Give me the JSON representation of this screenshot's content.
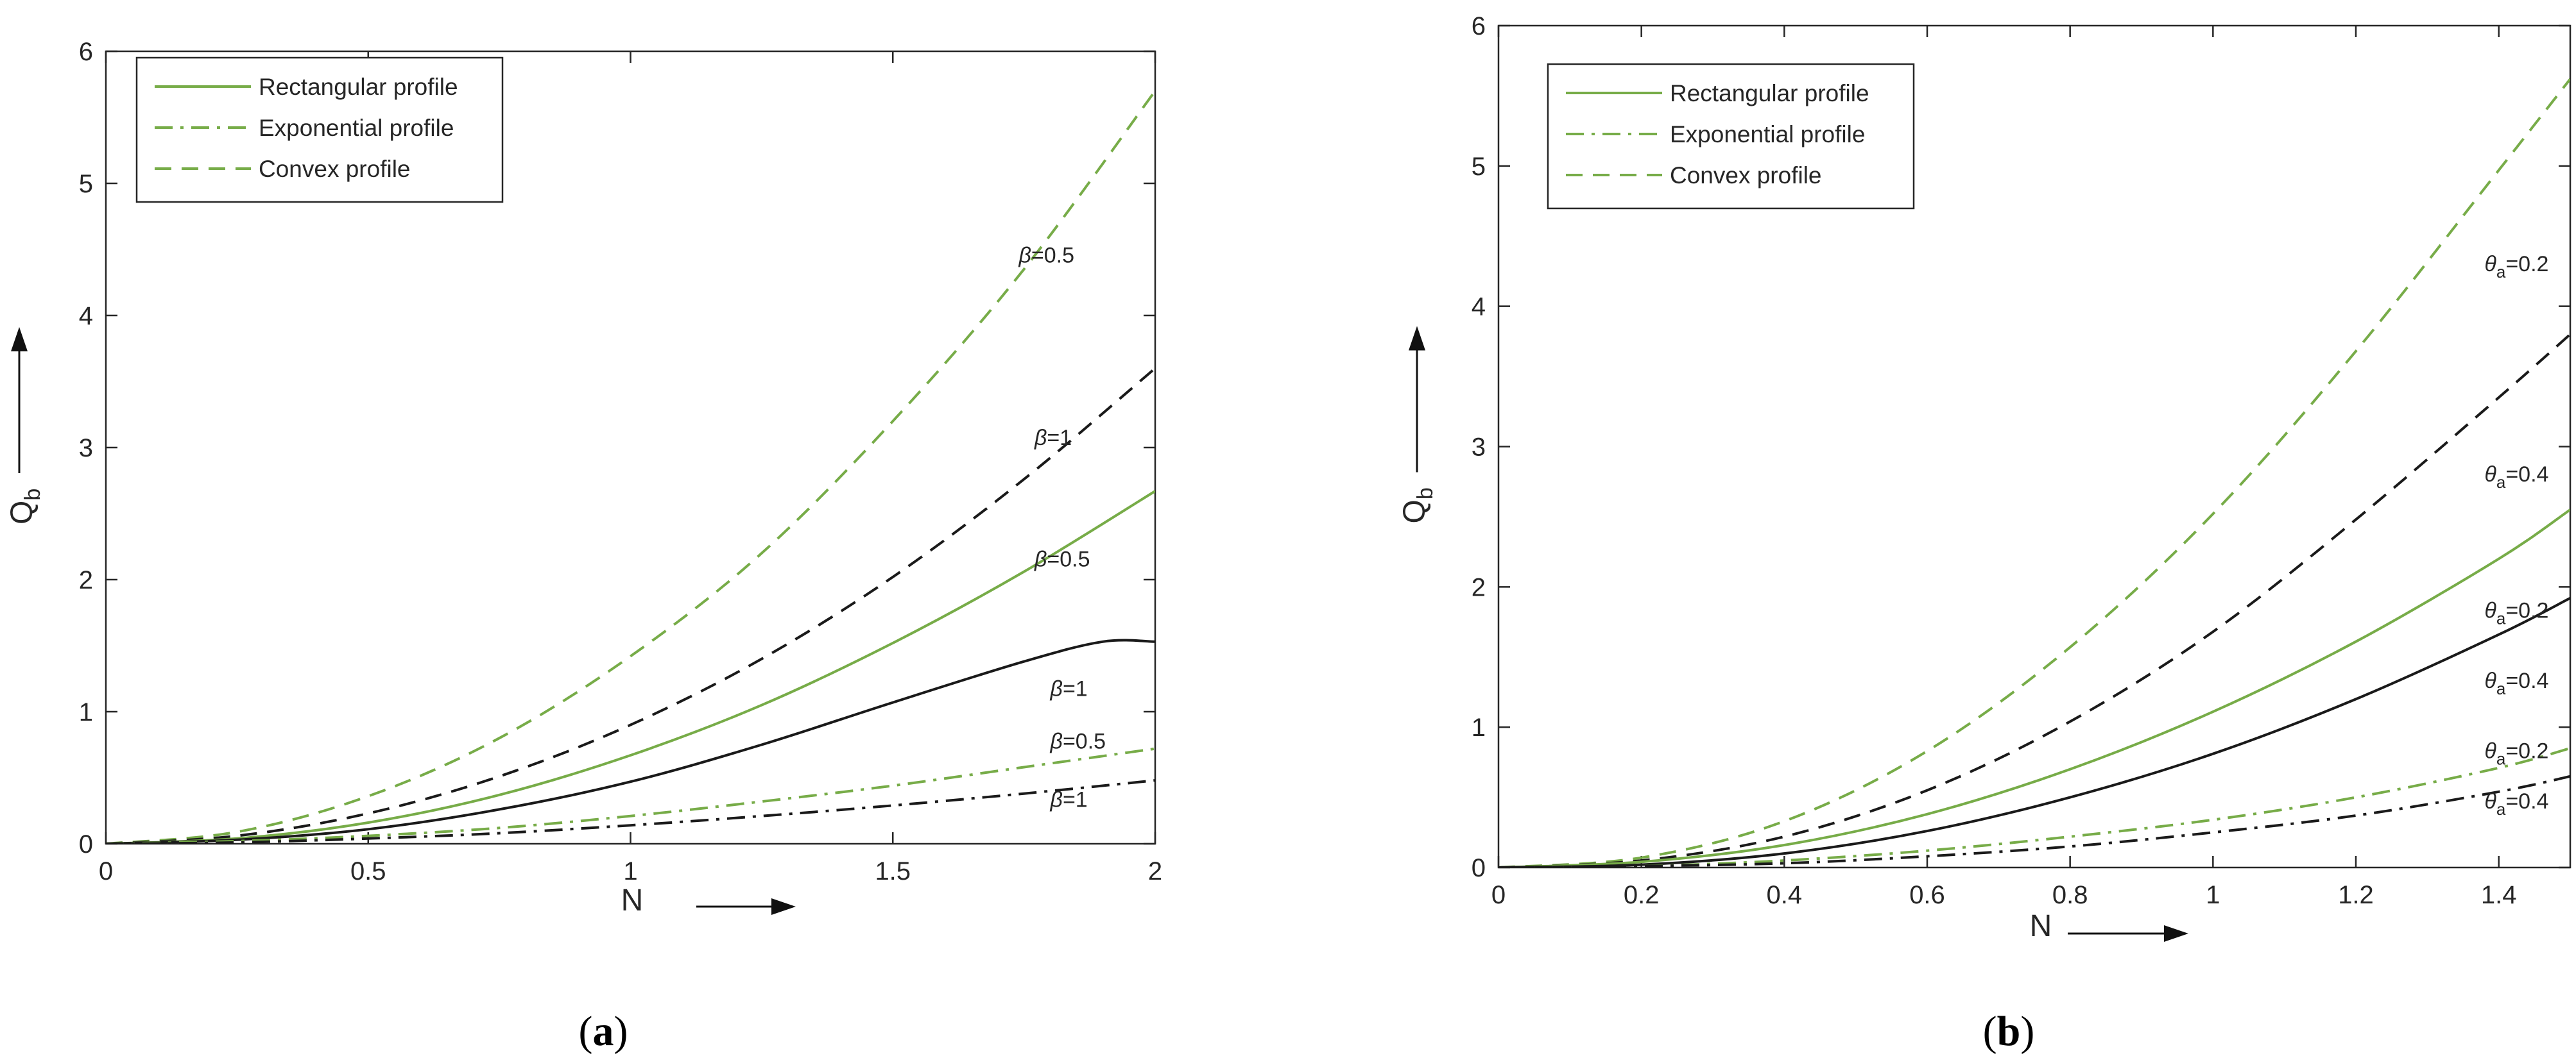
{
  "chart_data": [
    {
      "panel_label": "a",
      "type": "line",
      "xlabel": "N",
      "ylabel": "Q",
      "ylabel_sub": "b",
      "xlim": [
        0,
        2
      ],
      "ylim": [
        0,
        6
      ],
      "xticks": [
        "0",
        "0.5",
        "1",
        "1.5",
        "2"
      ],
      "yticks": [
        "0",
        "1",
        "2",
        "3",
        "4",
        "5",
        "6"
      ],
      "legend": {
        "position": "top-left",
        "entries": [
          {
            "label": "Rectangular profile",
            "style": "solid"
          },
          {
            "label": "Exponential profile",
            "style": "dashdot"
          },
          {
            "label": "Convex profile",
            "style": "dashed"
          }
        ]
      },
      "series": [
        {
          "name": "Convex profile, β=0.5",
          "profile": "convex",
          "color": "#77ac48",
          "style": "dashed",
          "x": [
            0,
            0.25,
            0.5,
            0.75,
            1,
            1.25,
            1.5,
            1.75,
            2
          ],
          "y": [
            0,
            0.09,
            0.36,
            0.8,
            1.42,
            2.2,
            3.2,
            4.35,
            5.7
          ]
        },
        {
          "name": "Convex profile, β=1",
          "profile": "convex",
          "color": "#1a1a1a",
          "style": "dashed",
          "x": [
            0,
            0.25,
            0.5,
            0.75,
            1,
            1.25,
            1.5,
            1.75,
            2
          ],
          "y": [
            0,
            0.06,
            0.23,
            0.51,
            0.9,
            1.4,
            2.02,
            2.76,
            3.6
          ]
        },
        {
          "name": "Rectangular profile, β=0.5",
          "profile": "rectangular",
          "color": "#77ac48",
          "style": "solid",
          "x": [
            0,
            0.25,
            0.5,
            0.75,
            1,
            1.25,
            1.5,
            1.75,
            2
          ],
          "y": [
            0,
            0.04,
            0.16,
            0.37,
            0.67,
            1.05,
            1.52,
            2.06,
            2.67
          ]
        },
        {
          "name": "Rectangular profile, β=1",
          "profile": "rectangular",
          "color": "#1a1a1a",
          "style": "solid",
          "x": [
            0,
            0.25,
            0.5,
            0.75,
            1,
            1.25,
            1.5,
            1.75,
            1.9,
            2
          ],
          "y": [
            0,
            0.03,
            0.11,
            0.26,
            0.47,
            0.75,
            1.07,
            1.38,
            1.53,
            1.53
          ]
        },
        {
          "name": "Exponential profile, β=0.5",
          "profile": "exponential",
          "color": "#77ac48",
          "style": "dashdot",
          "x": [
            0,
            0.25,
            0.5,
            0.75,
            1,
            1.25,
            1.5,
            1.75,
            2
          ],
          "y": [
            0,
            0.02,
            0.06,
            0.12,
            0.21,
            0.32,
            0.44,
            0.58,
            0.72
          ]
        },
        {
          "name": "Exponential profile, β=1",
          "profile": "exponential",
          "color": "#1a1a1a",
          "style": "dashdot",
          "x": [
            0,
            0.25,
            0.5,
            0.75,
            1,
            1.25,
            1.5,
            1.75,
            2
          ],
          "y": [
            0,
            0.01,
            0.04,
            0.08,
            0.14,
            0.21,
            0.29,
            0.38,
            0.48
          ]
        }
      ],
      "annotations": [
        {
          "symbol": "β",
          "text": "=0.5",
          "x": 1.74,
          "y": 4.4
        },
        {
          "symbol": "β",
          "text": "=1",
          "x": 1.77,
          "y": 3.02
        },
        {
          "symbol": "β",
          "text": "=0.5",
          "x": 1.77,
          "y": 2.1
        },
        {
          "symbol": "β",
          "text": "=1",
          "x": 1.8,
          "y": 1.12
        },
        {
          "symbol": "β",
          "text": "=0.5",
          "x": 1.8,
          "y": 0.72
        },
        {
          "symbol": "β",
          "text": "=1",
          "x": 1.8,
          "y": 0.28
        }
      ]
    },
    {
      "panel_label": "b",
      "type": "line",
      "xlabel": "N",
      "ylabel": "Q",
      "ylabel_sub": "b",
      "xlim": [
        0,
        1.5
      ],
      "ylim": [
        0,
        6
      ],
      "xticks": [
        "0",
        "0.2",
        "0.4",
        "0.6",
        "0.8",
        "1",
        "1.2",
        "1.4"
      ],
      "yticks": [
        "0",
        "1",
        "2",
        "3",
        "4",
        "5",
        "6"
      ],
      "legend": {
        "position": "top-left",
        "entries": [
          {
            "label": "Rectangular profile",
            "style": "solid"
          },
          {
            "label": "Exponential profile",
            "style": "dashdot"
          },
          {
            "label": "Convex profile",
            "style": "dashed"
          }
        ]
      },
      "series": [
        {
          "name": "Convex profile, θa=0.2",
          "profile": "convex",
          "color": "#77ac48",
          "style": "dashed",
          "x": [
            0,
            0.2,
            0.4,
            0.6,
            0.8,
            1,
            1.2,
            1.4,
            1.5
          ],
          "y": [
            0,
            0.07,
            0.33,
            0.83,
            1.57,
            2.52,
            3.68,
            4.97,
            5.62
          ]
        },
        {
          "name": "Convex profile, θa=0.4",
          "profile": "convex",
          "color": "#1a1a1a",
          "style": "dashed",
          "x": [
            0,
            0.2,
            0.4,
            0.6,
            0.8,
            1,
            1.2,
            1.4,
            1.5
          ],
          "y": [
            0,
            0.05,
            0.22,
            0.55,
            1.04,
            1.68,
            2.48,
            3.35,
            3.8
          ]
        },
        {
          "name": "Rectangular profile, θa=0.2",
          "profile": "rectangular",
          "color": "#77ac48",
          "style": "solid",
          "x": [
            0,
            0.2,
            0.4,
            0.6,
            0.8,
            1,
            1.2,
            1.4,
            1.5
          ],
          "y": [
            0,
            0.04,
            0.16,
            0.38,
            0.7,
            1.11,
            1.61,
            2.2,
            2.55
          ]
        },
        {
          "name": "Rectangular profile, θa=0.4",
          "profile": "rectangular",
          "color": "#1a1a1a",
          "style": "solid",
          "x": [
            0,
            0.2,
            0.4,
            0.6,
            0.8,
            1,
            1.2,
            1.4,
            1.5
          ],
          "y": [
            0,
            0.02,
            0.1,
            0.26,
            0.5,
            0.81,
            1.2,
            1.66,
            1.92
          ]
        },
        {
          "name": "Exponential profile, θa=0.2",
          "profile": "exponential",
          "color": "#77ac48",
          "style": "dashdot",
          "x": [
            0,
            0.2,
            0.4,
            0.6,
            0.8,
            1,
            1.2,
            1.4,
            1.5
          ],
          "y": [
            0,
            0.01,
            0.05,
            0.12,
            0.22,
            0.34,
            0.5,
            0.71,
            0.85
          ]
        },
        {
          "name": "Exponential profile, θa=0.4",
          "profile": "exponential",
          "color": "#1a1a1a",
          "style": "dashdot",
          "x": [
            0,
            0.2,
            0.4,
            0.6,
            0.8,
            1,
            1.2,
            1.4,
            1.5
          ],
          "y": [
            0,
            0.01,
            0.03,
            0.08,
            0.15,
            0.25,
            0.37,
            0.54,
            0.65
          ]
        }
      ],
      "annotations": [
        {
          "symbol": "θ",
          "sub": "a",
          "text": "=0.2",
          "x": 1.38,
          "y": 4.25
        },
        {
          "symbol": "θ",
          "sub": "a",
          "text": "=0.4",
          "x": 1.38,
          "y": 2.75
        },
        {
          "symbol": "θ",
          "sub": "a",
          "text": "=0.2",
          "x": 1.38,
          "y": 1.78
        },
        {
          "symbol": "θ",
          "sub": "a",
          "text": "=0.4",
          "x": 1.38,
          "y": 1.28
        },
        {
          "symbol": "θ",
          "sub": "a",
          "text": "=0.2",
          "x": 1.38,
          "y": 0.78
        },
        {
          "symbol": "θ",
          "sub": "a",
          "text": "=0.4",
          "x": 1.38,
          "y": 0.42
        }
      ]
    }
  ]
}
